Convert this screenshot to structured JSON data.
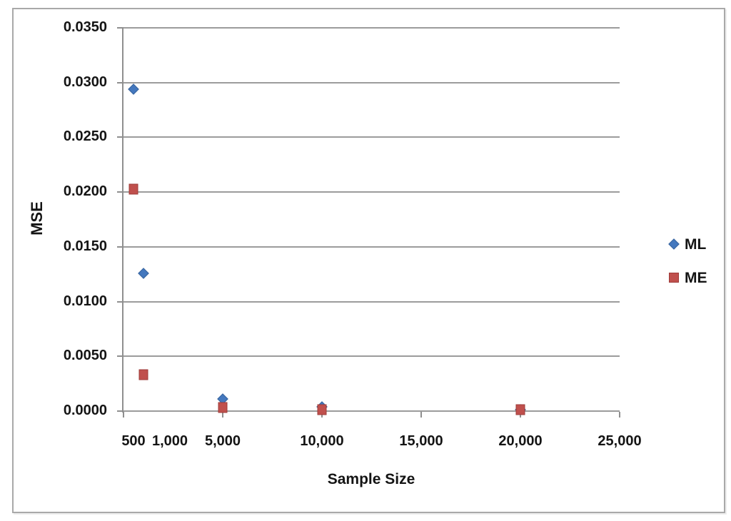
{
  "figure": {
    "background": "#ffffff",
    "frame_border_color": "#a9a9a9",
    "gridline_color": "#9c9c9c",
    "axis_line_color": "#8f8f8f",
    "text_color": "#141414"
  },
  "chart_data": {
    "type": "scatter",
    "title": "",
    "xlabel": "Sample Size",
    "ylabel": "MSE",
    "xlim": [
      0,
      25000
    ],
    "ylim": [
      0,
      0.035
    ],
    "grid": "horizontal",
    "legend_position": "right",
    "y_ticks": [
      {
        "label": "0.0000",
        "value": 0.0
      },
      {
        "label": "0.0050",
        "value": 0.005
      },
      {
        "label": "0.0100",
        "value": 0.01
      },
      {
        "label": "0.0150",
        "value": 0.015
      },
      {
        "label": "0.0200",
        "value": 0.02
      },
      {
        "label": "0.0250",
        "value": 0.025
      },
      {
        "label": "0.0300",
        "value": 0.03
      },
      {
        "label": "0.0350",
        "value": 0.035
      }
    ],
    "x_tick_mark_values": [
      0,
      5000,
      10000,
      15000,
      20000,
      25000
    ],
    "x_tick_labels": [
      {
        "label": "500",
        "at": 500
      },
      {
        "label": "1,000",
        "at": 2340
      },
      {
        "label": "5,000",
        "at": 5000
      },
      {
        "label": "10,000",
        "at": 10000
      },
      {
        "label": "15,000",
        "at": 15000
      },
      {
        "label": "20,000",
        "at": 20000
      },
      {
        "label": "25,000",
        "at": 25000
      }
    ],
    "series": [
      {
        "name": "ML",
        "marker": "diamond",
        "color": "#4478BE",
        "border_color": "#38639D",
        "points": [
          {
            "x": 500,
            "y": 0.0294
          },
          {
            "x": 1000,
            "y": 0.0126
          },
          {
            "x": 5000,
            "y": 0.0011
          },
          {
            "x": 10000,
            "y": 0.0004
          },
          {
            "x": 20000,
            "y": 0.0001
          }
        ]
      },
      {
        "name": "ME",
        "marker": "square",
        "color": "#C0504D",
        "border_color": "#9E3B39",
        "points": [
          {
            "x": 500,
            "y": 0.0203
          },
          {
            "x": 1000,
            "y": 0.0033
          },
          {
            "x": 5000,
            "y": 0.0003
          },
          {
            "x": 10000,
            "y": 0.0001
          },
          {
            "x": 20000,
            "y": 0.0001
          }
        ]
      }
    ]
  }
}
